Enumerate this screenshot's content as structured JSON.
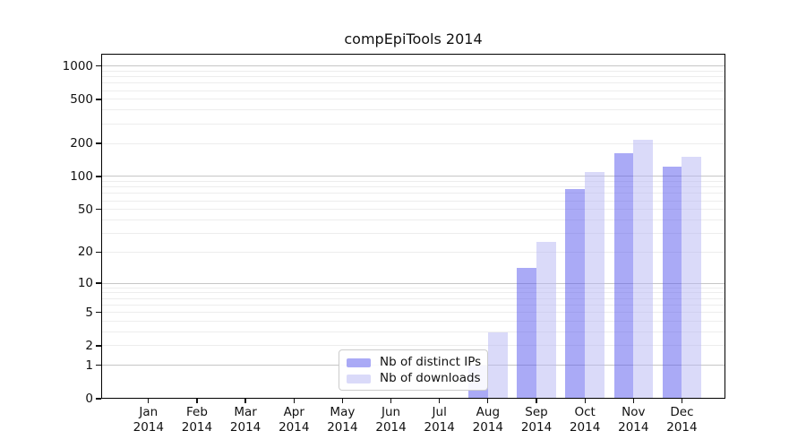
{
  "chart_data": {
    "type": "bar",
    "title": "compEpiTools 2014",
    "year": "2014",
    "months": [
      "Jan",
      "Feb",
      "Mar",
      "Apr",
      "May",
      "Jun",
      "Jul",
      "Aug",
      "Sep",
      "Oct",
      "Nov",
      "Dec"
    ],
    "series": [
      {
        "name": "Nb of distinct IPs",
        "color": "rgba(85,85,238,0.5)",
        "values": [
          0,
          0,
          0,
          0,
          0,
          0,
          0,
          1,
          14,
          77,
          162,
          122
        ]
      },
      {
        "name": "Nb of downloads",
        "color": "rgba(181,181,243,0.5)",
        "values": [
          0,
          0,
          0,
          0,
          0,
          0,
          0,
          3,
          25,
          110,
          215,
          152
        ]
      }
    ],
    "y_axis": {
      "scale": "log1p",
      "ticks": [
        0,
        1,
        2,
        5,
        10,
        20,
        50,
        100,
        200,
        500,
        1000
      ],
      "major_gridlines": [
        1,
        10,
        100,
        1000
      ],
      "range": [
        0,
        1287
      ]
    },
    "x_axis": {
      "tick_label_format": "month over year, two lines"
    },
    "legend": {
      "position": "lower-center-inside"
    },
    "grid": true
  },
  "colors": {
    "bar_distinct_ips_rendered": "#aaaaf6",
    "bar_downloads_rendered": "#dadaf9",
    "grid_major": "#c6c6c6",
    "grid_minor": "#ededed",
    "axis": "#111111",
    "legend_border": "#cccccc",
    "background": "#ffffff"
  }
}
